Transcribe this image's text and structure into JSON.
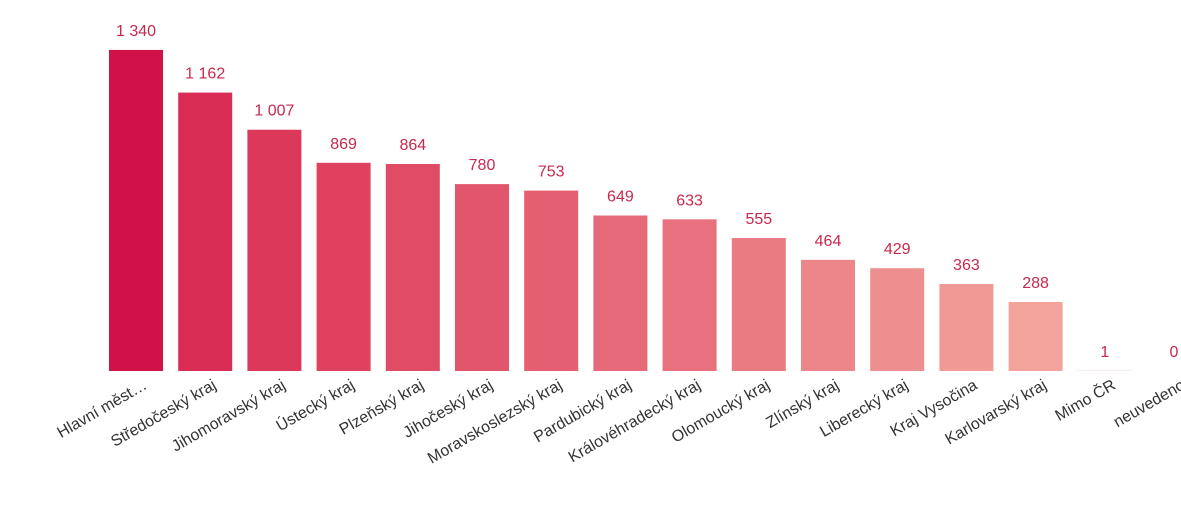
{
  "chart_data": {
    "type": "bar",
    "categories": [
      "Hlavní měst…",
      "Středočeský kraj",
      "Jihomoravský kraj",
      "Ústecký kraj",
      "Plzeňský kraj",
      "Jihočeský kraj",
      "Moravskoslezský kraj",
      "Pardubický kraj",
      "Královéhradecký kraj",
      "Olomoucký kraj",
      "Zlínský kraj",
      "Liberecký kraj",
      "Kraj Vysočina",
      "Karlovarský kraj",
      "Mimo ČR",
      "neuvedeno"
    ],
    "values": [
      1340,
      1162,
      1007,
      869,
      864,
      780,
      753,
      649,
      633,
      555,
      464,
      429,
      363,
      288,
      1,
      0
    ],
    "value_labels": [
      "1 340",
      "1 162",
      "1 007",
      "869",
      "864",
      "780",
      "753",
      "649",
      "633",
      "555",
      "464",
      "429",
      "363",
      "288",
      "1",
      "0"
    ],
    "colors": [
      "#d01248",
      "#d92d55",
      "#dc3859",
      "#de425f",
      "#e04b65",
      "#e2566b",
      "#e45f72",
      "#e66a78",
      "#e8717d",
      "#ea7b82",
      "#ec868a",
      "#ee8f8f",
      "#f09995",
      "#f2a39c",
      "#f4aea4",
      "#f6b8ac"
    ]
  }
}
